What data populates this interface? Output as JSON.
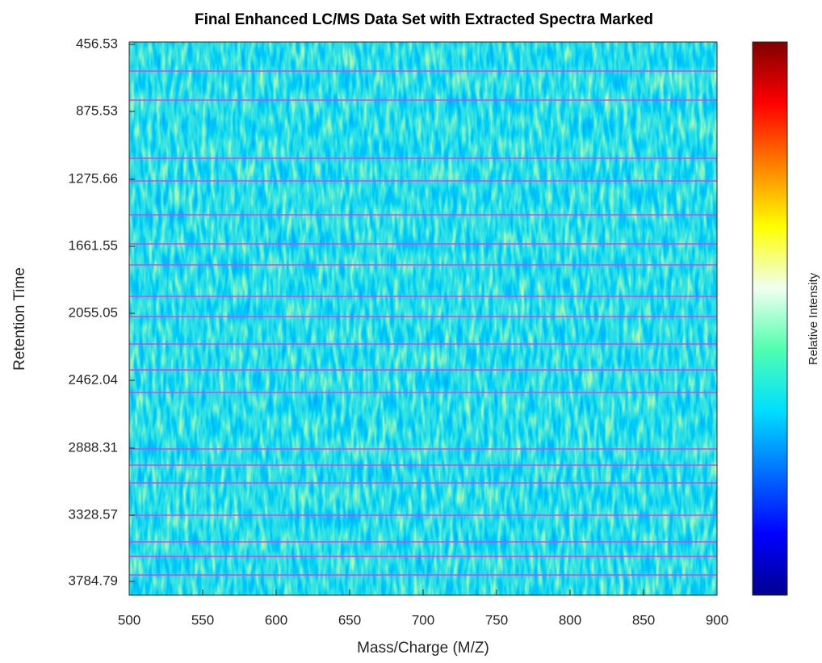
{
  "chart_data": {
    "type": "heatmap",
    "title": "Final Enhanced LC/MS Data Set with Extracted Spectra Marked",
    "xlabel": "Mass/Charge (M/Z)",
    "ylabel": "Retention Time",
    "colorbar_label": "Relative Intensity",
    "xlim": [
      500,
      900
    ],
    "xticks": [
      500,
      550,
      600,
      650,
      700,
      750,
      800,
      850,
      900
    ],
    "ylim": [
      441,
      3878
    ],
    "yticks": [
      456.53,
      875.53,
      1275.66,
      1661.55,
      2055.05,
      2462.04,
      2888.31,
      3328.57,
      3784.79
    ],
    "marked_spectra": [
      623.1,
      804.8,
      1151.8,
      1285.0,
      1480.2,
      1647.6,
      1770.6,
      1955.5,
      2074.7,
      2241.4,
      2398.4,
      2538.2,
      2893.6,
      2999.7,
      3116.4,
      3328.6,
      3512.2,
      3612.4,
      3740.3
    ],
    "marker_color": "#e23ee8",
    "colormap": [
      "#00008f",
      "#0000ff",
      "#0070ff",
      "#00dfff",
      "#50ffaf",
      "#f0fff0",
      "#ffff00",
      "#ff8000",
      "#ff0000",
      "#800000"
    ]
  }
}
